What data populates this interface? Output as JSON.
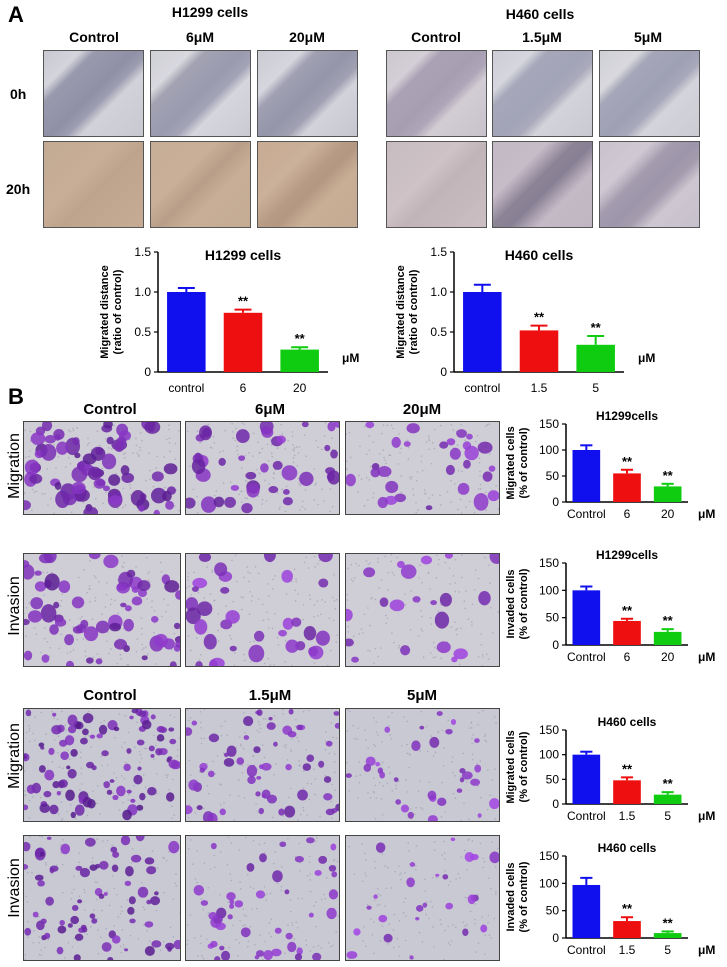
{
  "panelA": {
    "letter": "A",
    "groups": [
      {
        "title": "H1299 cells",
        "cols": [
          "Control",
          "6μM",
          "20μM"
        ]
      },
      {
        "title": "H460 cells",
        "cols": [
          "Control",
          "1.5μM",
          "5μM"
        ]
      }
    ],
    "rows": [
      "0h",
      "20h"
    ]
  },
  "panelB": {
    "letter": "B",
    "top_cols": [
      "Control",
      "6μM",
      "20μM"
    ],
    "bottom_cols": [
      "Control",
      "1.5μM",
      "5μM"
    ],
    "rows": [
      "Migration",
      "Invasion",
      "Migration",
      "Invasion"
    ]
  },
  "colors": {
    "blue": "#1010ee",
    "red": "#ee1010",
    "green": "#10cc10"
  },
  "chart_data": [
    {
      "id": "a1",
      "type": "bar",
      "title": "H1299 cells",
      "categories": [
        "control",
        "6",
        "20"
      ],
      "values": [
        1.0,
        0.74,
        0.28
      ],
      "errors": [
        0.05,
        0.04,
        0.03
      ],
      "ylabel": "Migrated distance (ratio of control)",
      "ylim": [
        0,
        1.5
      ],
      "yticks": [
        "0",
        "0.5",
        "1.0",
        "1.5"
      ],
      "unit": "μM",
      "sig": [
        "",
        "**",
        "**"
      ]
    },
    {
      "id": "a2",
      "type": "bar",
      "title": "H460 cells",
      "categories": [
        "control",
        "1.5",
        "5"
      ],
      "values": [
        1.0,
        0.52,
        0.34
      ],
      "errors": [
        0.09,
        0.06,
        0.11
      ],
      "ylabel": "Migrated distance (ratio of control)",
      "ylim": [
        0,
        1.5
      ],
      "yticks": [
        "0",
        "0.5",
        "1.0",
        "1.5"
      ],
      "unit": "μM",
      "sig": [
        "",
        "**",
        "**"
      ]
    },
    {
      "id": "b1",
      "type": "bar",
      "title": "H1299cells",
      "categories": [
        "Control",
        "6",
        "20"
      ],
      "values": [
        100,
        55,
        30
      ],
      "errors": [
        9,
        7,
        5
      ],
      "ylabel": "Migrated cells (% of control)",
      "ylim": [
        0,
        150
      ],
      "yticks": [
        "0",
        "50",
        "100",
        "150"
      ],
      "unit": "μM",
      "sig": [
        "",
        "**",
        "**"
      ]
    },
    {
      "id": "b2",
      "type": "bar",
      "title": "H1299cells",
      "categories": [
        "Control",
        "6",
        "20"
      ],
      "values": [
        100,
        44,
        24
      ],
      "errors": [
        7,
        4,
        5
      ],
      "ylabel": "Invaded cells (% of control)",
      "ylim": [
        0,
        150
      ],
      "yticks": [
        "0",
        "50",
        "100",
        "150"
      ],
      "unit": "μM",
      "sig": [
        "",
        "**",
        "**"
      ]
    },
    {
      "id": "b3",
      "type": "bar",
      "title": "H460 cells",
      "categories": [
        "Control",
        "1.5",
        "5"
      ],
      "values": [
        100,
        48,
        19
      ],
      "errors": [
        6,
        6,
        5
      ],
      "ylabel": "Migrated cells (% of control)",
      "ylim": [
        0,
        150
      ],
      "yticks": [
        "0",
        "50",
        "100",
        "150"
      ],
      "unit": "μM",
      "sig": [
        "",
        "**",
        "**"
      ]
    },
    {
      "id": "b4",
      "type": "bar",
      "title": "H460 cells",
      "categories": [
        "Control",
        "1.5",
        "5"
      ],
      "values": [
        97,
        31,
        9
      ],
      "errors": [
        13,
        7,
        3
      ],
      "ylabel": "Invaded cells (% of control)",
      "ylim": [
        0,
        150
      ],
      "yticks": [
        "0",
        "50",
        "100",
        "150"
      ],
      "unit": "μM",
      "sig": [
        "",
        "**",
        "**"
      ]
    }
  ]
}
